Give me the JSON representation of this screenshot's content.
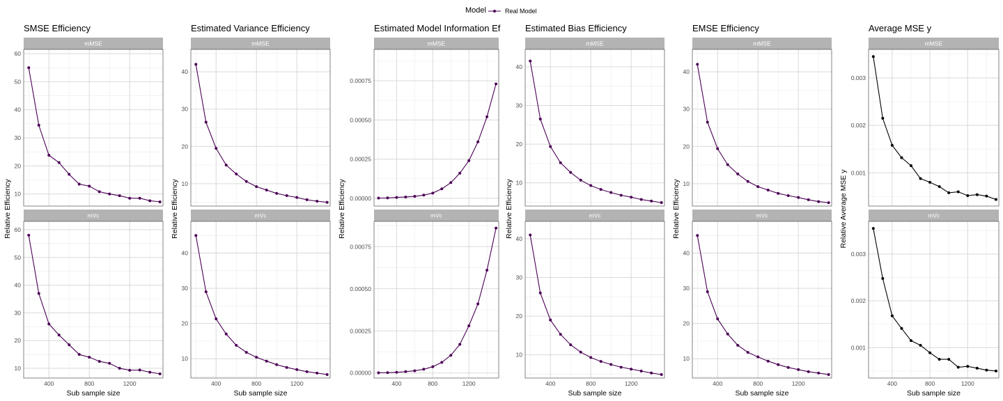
{
  "legend": {
    "title": "Model",
    "entries": [
      {
        "label": "Real Model",
        "color": "#4b0055"
      }
    ]
  },
  "chart_data": [
    {
      "type": "line",
      "title": "SMSE Efficiency",
      "xlabel": "Sub sample size",
      "ylabel": "Relative Efficiency",
      "line_color": "#4b0055",
      "xlim": [
        150,
        1530
      ],
      "x_ticks": [
        400,
        800,
        1200
      ],
      "x": [
        200,
        300,
        400,
        500,
        600,
        700,
        800,
        900,
        1000,
        1100,
        1200,
        1300,
        1400,
        1500
      ],
      "grid": true,
      "panels": [
        {
          "strip": "mMSE",
          "ylim": [
            5.7,
            61.5
          ],
          "y_ticks": [
            10,
            20,
            30,
            40,
            50,
            60
          ],
          "values": [
            55.0,
            34.5,
            23.8,
            21.2,
            17.0,
            13.5,
            12.8,
            10.8,
            10.0,
            9.4,
            8.5,
            8.5,
            7.6,
            7.2
          ]
        },
        {
          "strip": "mVc",
          "ylim": [
            6.5,
            63
          ],
          "y_ticks": [
            10,
            20,
            30,
            40,
            50,
            60
          ],
          "values": [
            58.0,
            37.0,
            26.0,
            22.0,
            18.5,
            15.0,
            14.0,
            12.5,
            11.8,
            10.0,
            9.3,
            9.4,
            8.6,
            8.0
          ]
        }
      ]
    },
    {
      "type": "line",
      "title": "Estimated Variance Efficiency",
      "xlabel": "Sub sample size",
      "ylabel": "Relative Efficiency",
      "line_color": "#4b0055",
      "xlim": [
        150,
        1530
      ],
      "x_ticks": [
        400,
        800,
        1200
      ],
      "x": [
        200,
        300,
        400,
        500,
        600,
        700,
        800,
        900,
        1000,
        1100,
        1200,
        1300,
        1400,
        1500
      ],
      "grid": true,
      "panels": [
        {
          "strip": "mMSE",
          "ylim": [
            4.0,
            46
          ],
          "y_ticks": [
            10,
            20,
            30,
            40
          ],
          "values": [
            42.0,
            26.5,
            19.5,
            15.0,
            12.6,
            10.6,
            9.2,
            8.3,
            7.4,
            6.8,
            6.3,
            5.7,
            5.3,
            5.0
          ]
        },
        {
          "strip": "mVc",
          "ylim": [
            4.5,
            49
          ],
          "y_ticks": [
            10,
            20,
            30,
            40
          ],
          "values": [
            45.0,
            29.0,
            21.3,
            17.0,
            13.8,
            11.8,
            10.4,
            9.3,
            8.3,
            7.5,
            6.9,
            6.3,
            5.9,
            5.5
          ]
        }
      ]
    },
    {
      "type": "line",
      "title": "Estimated Model Information Ef",
      "xlabel": "",
      "ylabel": "Relative Efficiency",
      "line_color": "#4b0055",
      "xlim": [
        150,
        1530
      ],
      "x_ticks": [
        400,
        800,
        1200
      ],
      "x": [
        200,
        300,
        400,
        500,
        600,
        700,
        800,
        900,
        1000,
        1100,
        1200,
        1300,
        1400,
        1500
      ],
      "grid": true,
      "panels": [
        {
          "strip": "mMSE",
          "ylim": [
            -5e-05,
            0.00095
          ],
          "y_ticks": [
            0,
            0.00025,
            0.0005,
            0.00075
          ],
          "tick_labels": [
            "0.00000",
            "0.00025",
            "0.00050",
            "0.00075"
          ],
          "values": [
            1e-06,
            2e-06,
            5e-06,
            8e-06,
            1.2e-05,
            2e-05,
            3.3e-05,
            6e-05,
            0.0001,
            0.00016,
            0.00024,
            0.00036,
            0.00052,
            0.00073
          ]
        },
        {
          "strip": "mVc",
          "ylim": [
            -3e-05,
            0.0009
          ],
          "y_ticks": [
            0,
            0.00025,
            0.0005,
            0.00075
          ],
          "tick_labels": [
            "0.00000",
            "0.00025",
            "0.00050",
            "0.00075"
          ],
          "values": [
            1e-06,
            2e-06,
            4e-06,
            8e-06,
            1.3e-05,
            2.2e-05,
            3.7e-05,
            6.3e-05,
            0.000105,
            0.00017,
            0.00028,
            0.00041,
            0.00061,
            0.00086
          ]
        }
      ]
    },
    {
      "type": "line",
      "title": "Estimated Bias Efficiency",
      "xlabel": "Sub sample size",
      "ylabel": "Relative Efficiency",
      "line_color": "#4b0055",
      "xlim": [
        150,
        1530
      ],
      "x_ticks": [
        400,
        800,
        1200
      ],
      "x": [
        200,
        300,
        400,
        500,
        600,
        700,
        800,
        900,
        1000,
        1100,
        1200,
        1300,
        1400,
        1500
      ],
      "grid": true,
      "panels": [
        {
          "strip": "mMSE",
          "ylim": [
            4.0,
            44.5
          ],
          "y_ticks": [
            10,
            20,
            30,
            40
          ],
          "values": [
            41.5,
            26.5,
            19.4,
            15.2,
            12.7,
            10.7,
            9.3,
            8.3,
            7.5,
            6.8,
            6.3,
            5.7,
            5.3,
            4.9
          ]
        },
        {
          "strip": "mVc",
          "ylim": [
            4.0,
            44.5
          ],
          "y_ticks": [
            10,
            20,
            30,
            40
          ],
          "values": [
            41.0,
            26.0,
            19.0,
            15.3,
            12.6,
            10.7,
            9.3,
            8.3,
            7.5,
            6.8,
            6.3,
            5.8,
            5.3,
            4.9
          ]
        }
      ]
    },
    {
      "type": "line",
      "title": "EMSE Efficiency",
      "xlabel": "Sub sample size",
      "ylabel": "Relative Efficiency",
      "line_color": "#4b0055",
      "xlim": [
        150,
        1530
      ],
      "x_ticks": [
        400,
        800,
        1200
      ],
      "x": [
        200,
        300,
        400,
        500,
        600,
        700,
        800,
        900,
        1000,
        1100,
        1200,
        1300,
        1400,
        1500
      ],
      "grid": true,
      "panels": [
        {
          "strip": "mMSE",
          "ylim": [
            4.0,
            46
          ],
          "y_ticks": [
            10,
            20,
            30,
            40
          ],
          "values": [
            42.0,
            26.5,
            19.4,
            15.1,
            12.6,
            10.6,
            9.2,
            8.3,
            7.4,
            6.8,
            6.3,
            5.7,
            5.2,
            4.9
          ]
        },
        {
          "strip": "mVc",
          "ylim": [
            4.5,
            49
          ],
          "y_ticks": [
            10,
            20,
            30,
            40
          ],
          "values": [
            45.0,
            29.0,
            21.3,
            17.0,
            13.8,
            11.8,
            10.5,
            9.3,
            8.3,
            7.5,
            6.9,
            6.3,
            5.9,
            5.5
          ]
        }
      ]
    },
    {
      "type": "line",
      "title": "Average MSE y",
      "xlabel": "Sub sample size",
      "ylabel": "Relative Average MSE y",
      "line_color": "#000000",
      "xlim": [
        150,
        1530
      ],
      "x_ticks": [
        400,
        800,
        1200
      ],
      "x": [
        200,
        300,
        400,
        500,
        600,
        700,
        800,
        900,
        1000,
        1100,
        1200,
        1300,
        1400,
        1500
      ],
      "grid": true,
      "panels": [
        {
          "strip": "mMSE",
          "ylim": [
            0.0003,
            0.0036
          ],
          "y_ticks": [
            0.001,
            0.002,
            0.003
          ],
          "tick_labels": [
            "0.001",
            "0.002",
            "0.003"
          ],
          "values": [
            0.00345,
            0.00215,
            0.00158,
            0.00132,
            0.00115,
            0.00088,
            0.0008,
            0.00071,
            0.00058,
            0.0006,
            0.00052,
            0.00054,
            0.00051,
            0.00044
          ]
        },
        {
          "strip": "mVc",
          "ylim": [
            0.00035,
            0.0037
          ],
          "y_ticks": [
            0.001,
            0.002,
            0.003
          ],
          "tick_labels": [
            "0.001",
            "0.002",
            "0.003"
          ],
          "values": [
            0.00355,
            0.00248,
            0.00168,
            0.00141,
            0.00115,
            0.00105,
            0.00089,
            0.00075,
            0.00075,
            0.00058,
            0.0006,
            0.00056,
            0.00052,
            0.0005
          ]
        }
      ]
    }
  ]
}
